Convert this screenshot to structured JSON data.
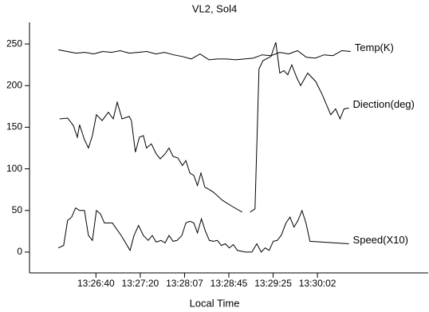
{
  "chart_data": {
    "type": "line",
    "title": "VL2, Sol4",
    "x_label": "Local Time",
    "xlim": [
      0,
      90
    ],
    "ylim": [
      -25,
      276
    ],
    "xticks": [
      {
        "value": 15,
        "label": "13:26:40"
      },
      {
        "value": 25,
        "label": "13:27:20"
      },
      {
        "value": 35,
        "label": "13:28:07"
      },
      {
        "value": 45,
        "label": "13:28:45"
      },
      {
        "value": 55,
        "label": "13:29:25"
      },
      {
        "value": 65,
        "label": "13:30:02"
      }
    ],
    "yticks": [
      0,
      50,
      100,
      150,
      200,
      250
    ],
    "series": [
      {
        "name": "Temp(K)",
        "color": "#000000",
        "x": [
          6.5,
          8.5,
          10.5,
          12.5,
          14.5,
          16.5,
          18.5,
          20.5,
          22.5,
          24.5,
          26.5,
          28.5,
          30.5,
          32.5,
          34.5,
          36.5,
          38.5,
          40.5,
          42.5,
          44.5,
          46.5,
          48.5,
          50.5,
          52.5,
          54.5,
          56.5,
          58.5,
          60.5,
          62.5,
          64.5,
          66.5,
          68.5,
          70.5,
          72.5
        ],
        "values": [
          243,
          241,
          239,
          240,
          238,
          241,
          240,
          242,
          239,
          240,
          241,
          238,
          240,
          237,
          235,
          232,
          238,
          231,
          232,
          232,
          231,
          232,
          233,
          237,
          236,
          240,
          238,
          242,
          234,
          233,
          237,
          236,
          242,
          241
        ]
      },
      {
        "name": "Diection(deg)",
        "color": "#000000",
        "x": [
          6.8,
          8.6,
          9.9,
          10.8,
          11.3,
          12.4,
          13.3,
          14.2,
          15.1,
          16.4,
          17.8,
          18.9,
          19.8,
          20.9,
          22.5,
          23.0,
          23.9,
          24.8,
          25.7,
          26.4,
          27.5,
          28.6,
          29.5,
          30.6,
          31.5,
          32.4,
          33.5,
          34.5,
          35.3,
          36.2,
          37.1,
          37.9,
          38.7,
          39.6,
          40.6,
          41.5,
          43.6,
          45.7,
          48.0,
          49.0,
          49.8,
          50.9,
          51.8,
          52.7,
          54.5,
          55.6,
          56.5,
          57.4,
          58.3,
          59.2,
          60.3,
          61.2,
          62.8,
          64.6,
          66.0,
          68.0,
          69.1,
          70.1,
          71.0,
          72.1
        ],
        "values": [
          160,
          161,
          152,
          138,
          153,
          135,
          125,
          140,
          165,
          158,
          168,
          160,
          180,
          160,
          163,
          158,
          120,
          138,
          140,
          125,
          130,
          118,
          112,
          118,
          125,
          115,
          113,
          104,
          110,
          95,
          92,
          80,
          95,
          78,
          75,
          72,
          62,
          55,
          48,
          null,
          48,
          52,
          220,
          230,
          235,
          252,
          215,
          218,
          213,
          225,
          210,
          200,
          215,
          205,
          190,
          165,
          172,
          160,
          172,
          173
        ]
      },
      {
        "name": "Speed(X10)",
        "color": "#000000",
        "x": [
          6.5,
          7.7,
          8.6,
          9.5,
          10.4,
          11.3,
          12.4,
          13.3,
          14.2,
          15.1,
          16.0,
          16.9,
          17.8,
          18.7,
          20.7,
          22.7,
          23.6,
          24.6,
          25.7,
          26.8,
          27.7,
          28.6,
          29.7,
          30.6,
          31.5,
          32.4,
          33.3,
          34.4,
          35.3,
          36.2,
          37.1,
          37.9,
          38.8,
          39.7,
          40.6,
          41.5,
          42.4,
          43.3,
          44.2,
          45.1,
          46.0,
          46.9,
          48.7,
          50.2,
          51.3,
          52.3,
          53.2,
          54.1,
          55.0,
          55.9,
          56.8,
          57.9,
          58.8,
          59.7,
          60.6,
          61.5,
          62.4,
          63.3,
          72.1
        ],
        "values": [
          5,
          8,
          38,
          42,
          53,
          50,
          50,
          20,
          14,
          50,
          46,
          35,
          35,
          35,
          20,
          2,
          20,
          32,
          20,
          14,
          20,
          12,
          14,
          11,
          20,
          13,
          14,
          20,
          35,
          37,
          35,
          23,
          40,
          25,
          14,
          13,
          14,
          8,
          10,
          5,
          9,
          2,
          0,
          0,
          10,
          0,
          5,
          2,
          13,
          14,
          20,
          35,
          42,
          30,
          38,
          50,
          35,
          13,
          10
        ]
      }
    ]
  }
}
